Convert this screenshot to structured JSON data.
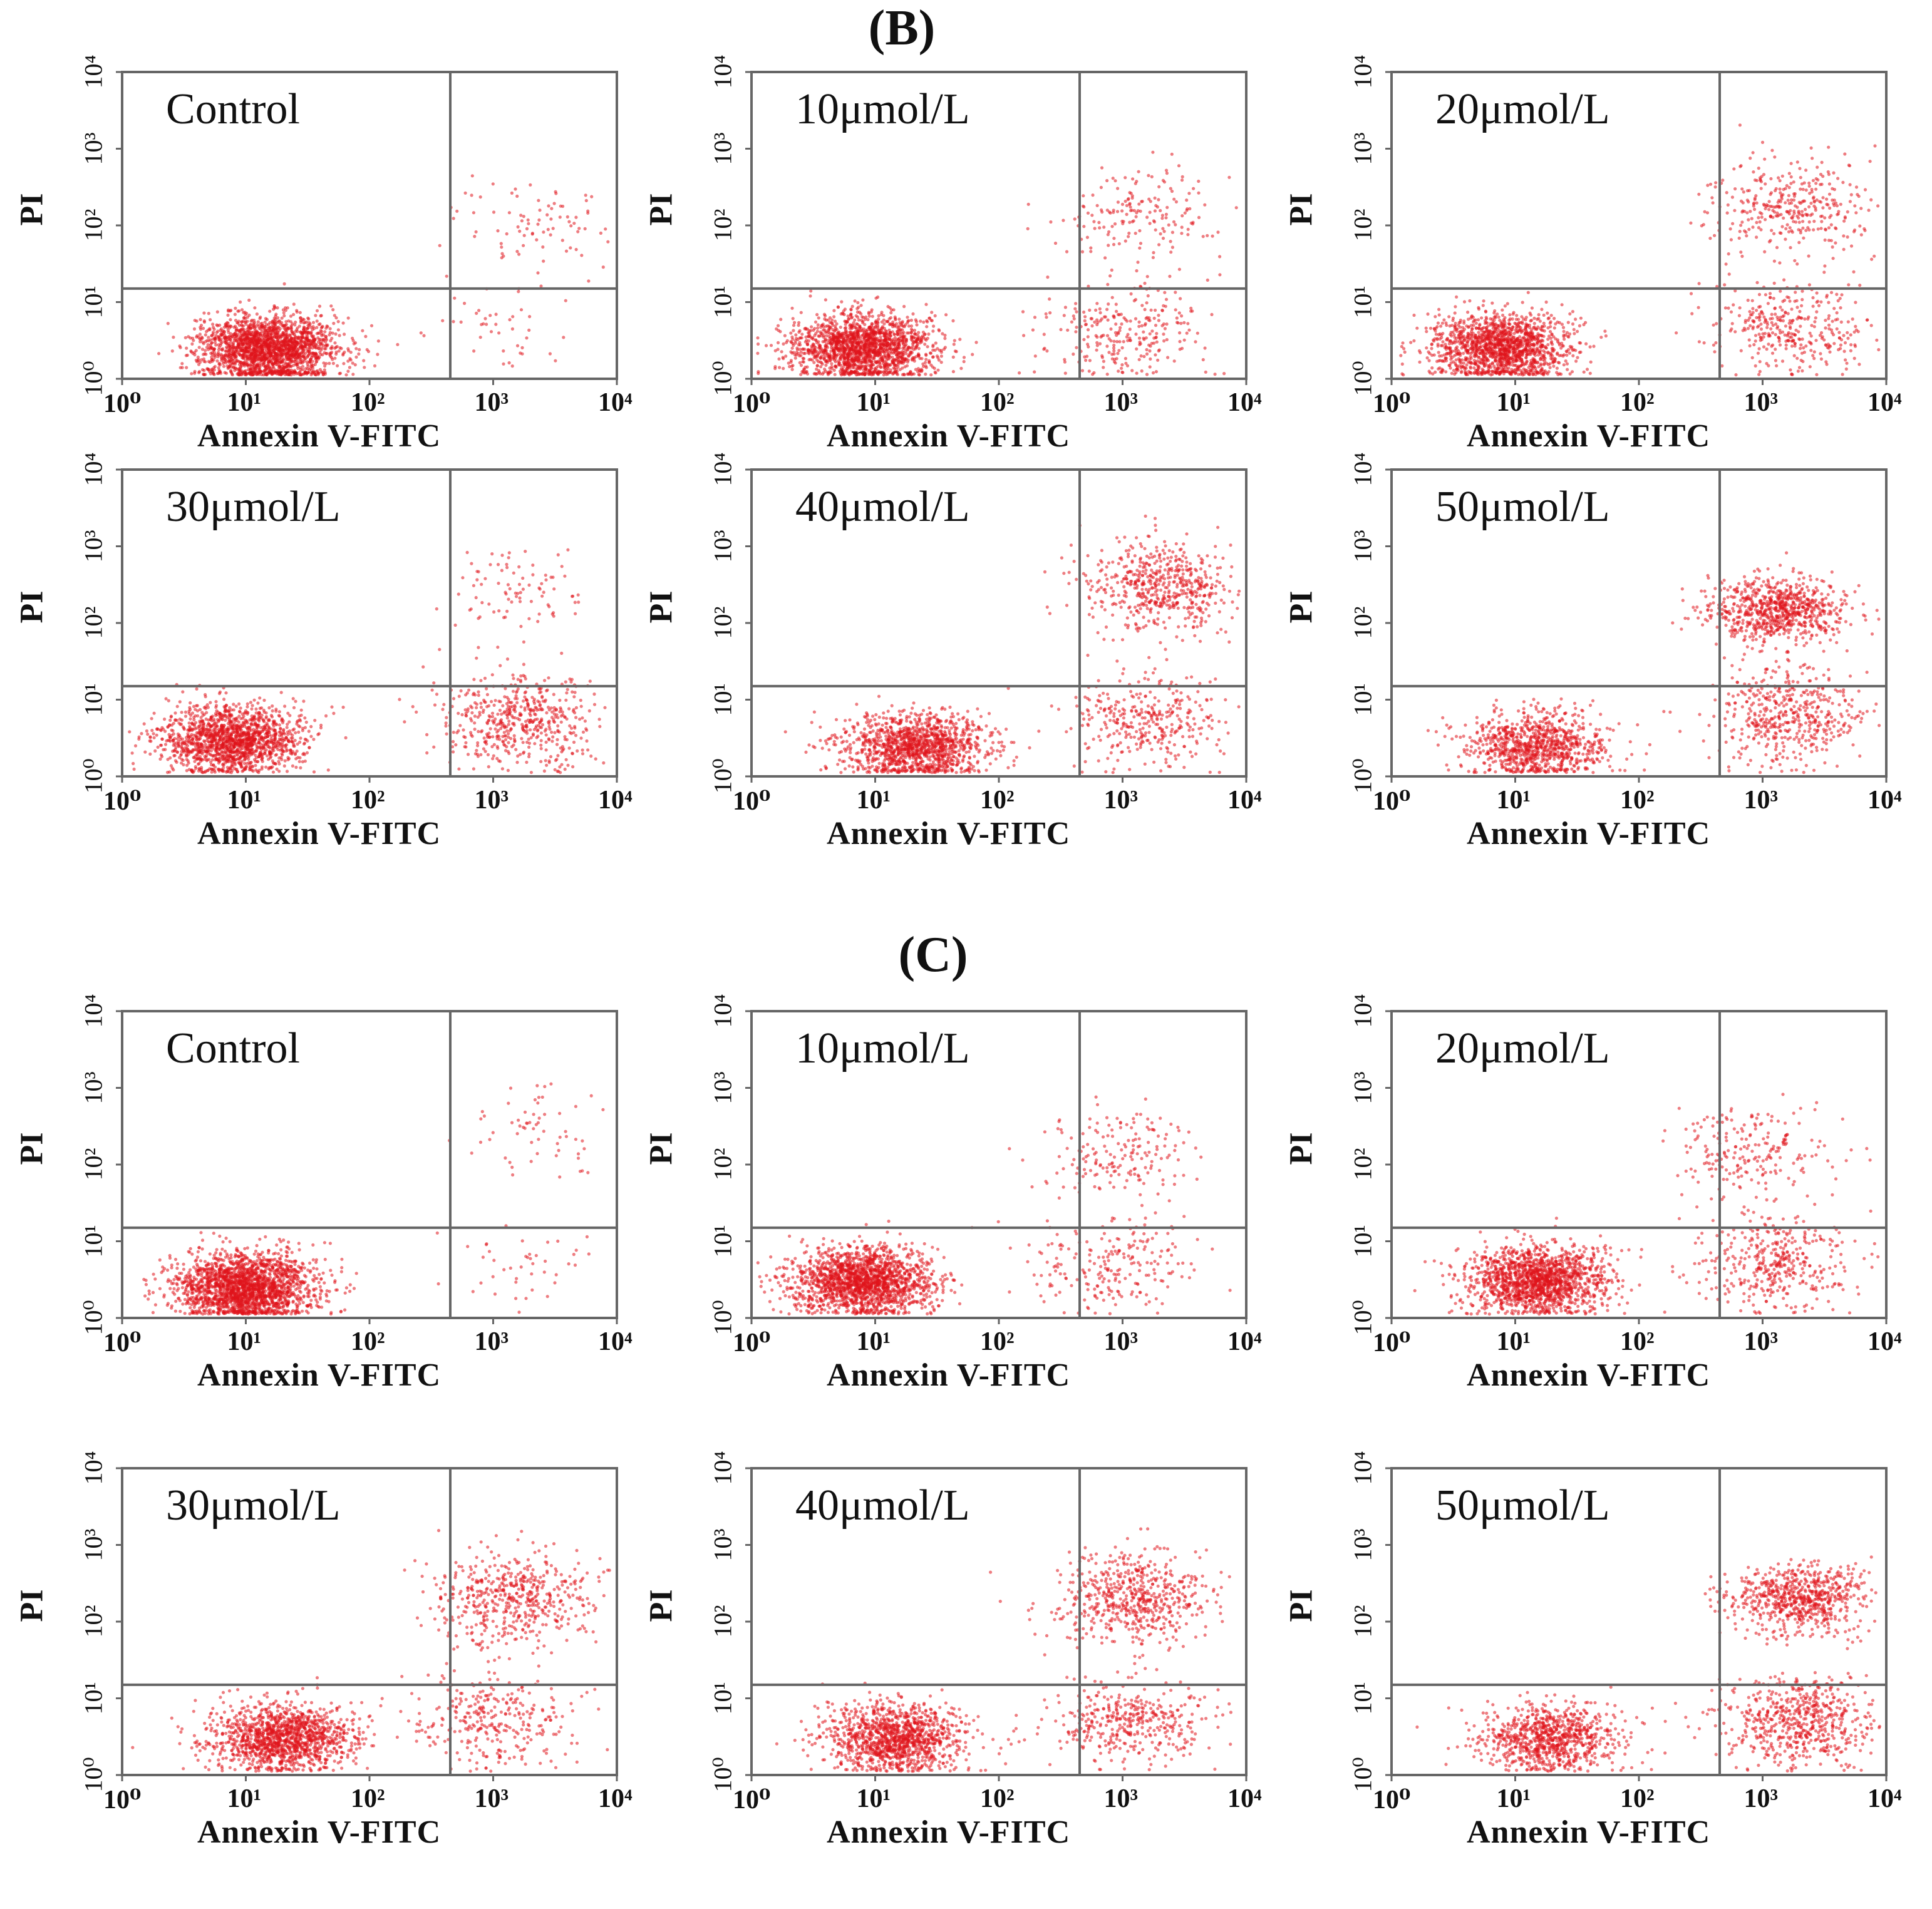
{
  "figure": {
    "sections": [
      {
        "id": "B",
        "title": "(B)"
      },
      {
        "id": "C",
        "title": "(C)"
      }
    ],
    "x_axis_label": "Annexin V-FITC",
    "y_axis_label": "PI",
    "tick_labels": [
      "10⁰",
      "10¹",
      "10²",
      "10³",
      "10⁴"
    ],
    "marker_color": "#e0141b",
    "axis_color": "#666666"
  },
  "chart_data": [
    {
      "type": "scatter",
      "section": "B",
      "label": "Control",
      "xlim": [
        1,
        10000
      ],
      "ylim": [
        1,
        10000
      ],
      "scale": "log",
      "quadrant_gate": {
        "x": 450,
        "y": 15
      },
      "populations": [
        {
          "x": 15,
          "y": 2.5,
          "weight": 0.94
        },
        {
          "x": 2500,
          "y": 120,
          "weight": 0.04
        },
        {
          "x": 1200,
          "y": 5,
          "weight": 0.02
        }
      ]
    },
    {
      "type": "scatter",
      "section": "B",
      "label": "10μmol/L",
      "xlim": [
        1,
        10000
      ],
      "ylim": [
        1,
        10000
      ],
      "scale": "log",
      "quadrant_gate": {
        "x": 450,
        "y": 15
      },
      "populations": [
        {
          "x": 8,
          "y": 2.5,
          "weight": 0.8
        },
        {
          "x": 1000,
          "y": 4,
          "weight": 0.12
        },
        {
          "x": 1500,
          "y": 150,
          "weight": 0.08
        }
      ]
    },
    {
      "type": "scatter",
      "section": "B",
      "label": "20μmol/L",
      "xlim": [
        1,
        10000
      ],
      "ylim": [
        1,
        10000
      ],
      "scale": "log",
      "quadrant_gate": {
        "x": 450,
        "y": 15
      },
      "populations": [
        {
          "x": 8,
          "y": 2.5,
          "weight": 0.68
        },
        {
          "x": 1800,
          "y": 5,
          "weight": 0.16
        },
        {
          "x": 1800,
          "y": 180,
          "weight": 0.16
        }
      ]
    },
    {
      "type": "scatter",
      "section": "B",
      "label": "30μmol/L",
      "xlim": [
        1,
        10000
      ],
      "ylim": [
        1,
        10000
      ],
      "scale": "log",
      "quadrant_gate": {
        "x": 450,
        "y": 15
      },
      "populations": [
        {
          "x": 8,
          "y": 3,
          "weight": 0.72
        },
        {
          "x": 1800,
          "y": 5,
          "weight": 0.24
        },
        {
          "x": 1500,
          "y": 250,
          "weight": 0.04
        }
      ]
    },
    {
      "type": "scatter",
      "section": "B",
      "label": "40μmol/L",
      "xlim": [
        1,
        10000
      ],
      "ylim": [
        1,
        10000
      ],
      "scale": "log",
      "quadrant_gate": {
        "x": 450,
        "y": 15
      },
      "populations": [
        {
          "x": 20,
          "y": 2.5,
          "weight": 0.58
        },
        {
          "x": 1500,
          "y": 5,
          "weight": 0.16
        },
        {
          "x": 2000,
          "y": 300,
          "weight": 0.26
        }
      ]
    },
    {
      "type": "scatter",
      "section": "B",
      "label": "50μmol/L",
      "xlim": [
        1,
        10000
      ],
      "ylim": [
        1,
        10000
      ],
      "scale": "log",
      "quadrant_gate": {
        "x": 450,
        "y": 15
      },
      "populations": [
        {
          "x": 15,
          "y": 2.5,
          "weight": 0.42
        },
        {
          "x": 1500,
          "y": 6,
          "weight": 0.22
        },
        {
          "x": 1300,
          "y": 150,
          "weight": 0.36
        }
      ]
    },
    {
      "type": "scatter",
      "section": "C",
      "label": "Control",
      "xlim": [
        1,
        10000
      ],
      "ylim": [
        1,
        10000
      ],
      "scale": "log",
      "quadrant_gate": {
        "x": 450,
        "y": 15
      },
      "populations": [
        {
          "x": 10,
          "y": 2.5,
          "weight": 0.95
        },
        {
          "x": 2500,
          "y": 250,
          "weight": 0.03
        },
        {
          "x": 1500,
          "y": 5,
          "weight": 0.02
        }
      ]
    },
    {
      "type": "scatter",
      "section": "C",
      "label": "10μmol/L",
      "xlim": [
        1,
        10000
      ],
      "ylim": [
        1,
        10000
      ],
      "scale": "log",
      "quadrant_gate": {
        "x": 450,
        "y": 15
      },
      "populations": [
        {
          "x": 8,
          "y": 3,
          "weight": 0.82
        },
        {
          "x": 800,
          "y": 5,
          "weight": 0.1
        },
        {
          "x": 900,
          "y": 150,
          "weight": 0.08
        }
      ]
    },
    {
      "type": "scatter",
      "section": "C",
      "label": "20μmol/L",
      "xlim": [
        1,
        10000
      ],
      "ylim": [
        1,
        10000
      ],
      "scale": "log",
      "quadrant_gate": {
        "x": 450,
        "y": 15
      },
      "populations": [
        {
          "x": 15,
          "y": 3,
          "weight": 0.72
        },
        {
          "x": 1300,
          "y": 5,
          "weight": 0.18
        },
        {
          "x": 800,
          "y": 150,
          "weight": 0.1
        }
      ]
    },
    {
      "type": "scatter",
      "section": "C",
      "label": "30μmol/L",
      "xlim": [
        1,
        10000
      ],
      "ylim": [
        1,
        10000
      ],
      "scale": "log",
      "quadrant_gate": {
        "x": 450,
        "y": 15
      },
      "populations": [
        {
          "x": 20,
          "y": 3,
          "weight": 0.62
        },
        {
          "x": 1000,
          "y": 5,
          "weight": 0.14
        },
        {
          "x": 1500,
          "y": 200,
          "weight": 0.24
        }
      ]
    },
    {
      "type": "scatter",
      "section": "C",
      "label": "40μmol/L",
      "xlim": [
        1,
        10000
      ],
      "ylim": [
        1,
        10000
      ],
      "scale": "log",
      "quadrant_gate": {
        "x": 450,
        "y": 15
      },
      "populations": [
        {
          "x": 15,
          "y": 3,
          "weight": 0.55
        },
        {
          "x": 1200,
          "y": 5,
          "weight": 0.18
        },
        {
          "x": 1200,
          "y": 200,
          "weight": 0.27
        }
      ]
    },
    {
      "type": "scatter",
      "section": "C",
      "label": "50μmol/L",
      "xlim": [
        1,
        10000
      ],
      "ylim": [
        1,
        10000
      ],
      "scale": "log",
      "quadrant_gate": {
        "x": 450,
        "y": 15
      },
      "populations": [
        {
          "x": 20,
          "y": 3,
          "weight": 0.4
        },
        {
          "x": 2000,
          "y": 5,
          "weight": 0.28
        },
        {
          "x": 2000,
          "y": 200,
          "weight": 0.32
        }
      ]
    }
  ]
}
